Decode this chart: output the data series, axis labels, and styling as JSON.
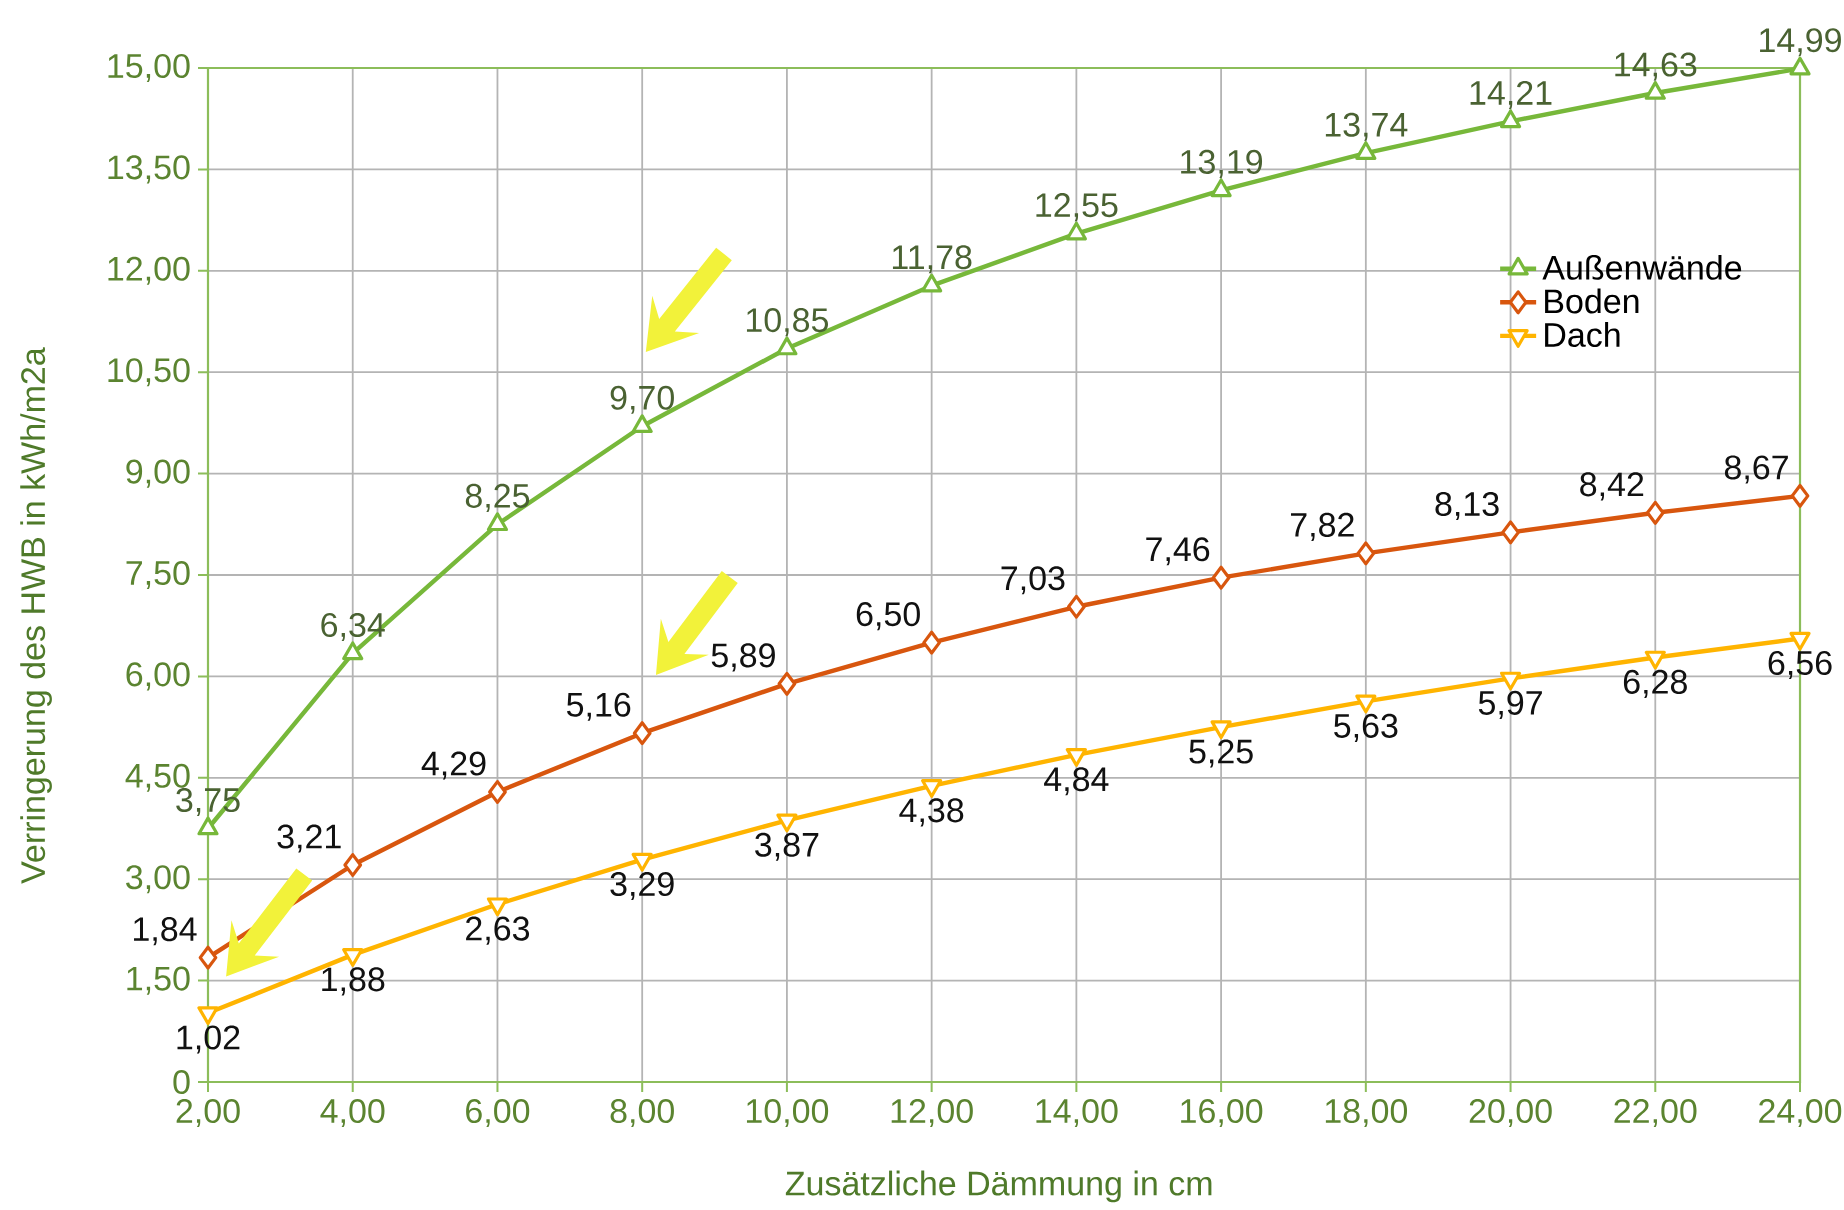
{
  "chart_data": {
    "type": "line",
    "xlabel": "Zusätzliche Dämmung in cm",
    "ylabel": "Verringerung des HWB in kWh/m2a",
    "x": [
      2,
      4,
      6,
      8,
      10,
      12,
      14,
      16,
      18,
      20,
      22,
      24
    ],
    "series": [
      {
        "name": "Außenwände",
        "color": "#77b83a",
        "marker": "triangle",
        "values": [
          3.75,
          6.34,
          8.25,
          9.7,
          10.85,
          11.78,
          12.55,
          13.19,
          13.74,
          14.21,
          14.63,
          14.99
        ],
        "value_labels": [
          "3,75",
          "6,34",
          "8,25",
          "9,70",
          "10,85",
          "11,78",
          "12,55",
          "13,19",
          "13,74",
          "14,21",
          "14,63",
          "14,99"
        ]
      },
      {
        "name": "Boden",
        "color": "#d8560e",
        "marker": "diamond",
        "values": [
          1.84,
          3.21,
          4.29,
          5.16,
          5.89,
          6.5,
          7.03,
          7.46,
          7.82,
          8.13,
          8.42,
          8.67
        ],
        "value_labels": [
          "1,84",
          "3,21",
          "4,29",
          "5,16",
          "5,89",
          "6,50",
          "7,03",
          "7,46",
          "7,82",
          "8,13",
          "8,42",
          "8,67"
        ]
      },
      {
        "name": "Dach",
        "color": "#ffb400",
        "marker": "triangle-down",
        "values": [
          1.02,
          1.88,
          2.63,
          3.29,
          3.87,
          4.38,
          4.84,
          5.25,
          5.63,
          5.97,
          6.28,
          6.56
        ],
        "value_labels": [
          "1,02",
          "1,88",
          "2,63",
          "3,29",
          "3,87",
          "4,38",
          "4,84",
          "5,25",
          "5,63",
          "5,97",
          "6,28",
          "6,56"
        ]
      }
    ],
    "xlim": [
      2,
      24
    ],
    "xticks": [
      {
        "value": 2,
        "label": "2,00"
      },
      {
        "value": 4,
        "label": "4,00"
      },
      {
        "value": 6,
        "label": "6,00"
      },
      {
        "value": 8,
        "label": "8,00"
      },
      {
        "value": 10,
        "label": "10,00"
      },
      {
        "value": 12,
        "label": "12,00"
      },
      {
        "value": 14,
        "label": "14,00"
      },
      {
        "value": 16,
        "label": "16,00"
      },
      {
        "value": 18,
        "label": "18,00"
      },
      {
        "value": 20,
        "label": "20,00"
      },
      {
        "value": 22,
        "label": "22,00"
      },
      {
        "value": 24,
        "label": "24,00"
      }
    ],
    "ylim": [
      0,
      15
    ],
    "yticks": [
      0,
      {
        "value": 1.5,
        "label": "1,50"
      },
      {
        "value": 3,
        "label": "3,00"
      },
      {
        "value": 4.5,
        "label": "4,50"
      },
      {
        "value": 6,
        "label": "6,00"
      },
      {
        "value": 7.5,
        "label": "7,50"
      },
      {
        "value": 9,
        "label": "9,00"
      },
      {
        "value": 10.5,
        "label": "10,50"
      },
      {
        "value": 12,
        "label": "12,00"
      },
      {
        "value": 13.5,
        "label": "13,50"
      },
      {
        "value": 15,
        "label": "15,00"
      }
    ],
    "grid": true,
    "legend": "right",
    "line_style": "solid"
  }
}
